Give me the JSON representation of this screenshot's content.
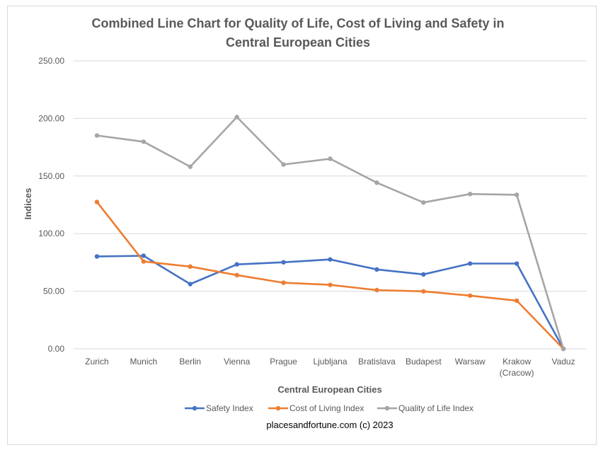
{
  "chart_data": {
    "type": "line",
    "title_lines": [
      "Combined Line Chart for Quality of Life, Cost of Living and Safety in",
      "Central European Cities"
    ],
    "xlabel": "Central European Cities",
    "ylabel": "Indices",
    "ylim": [
      0,
      250
    ],
    "yticks": [
      "0.00",
      "50.00",
      "100.00",
      "150.00",
      "200.00",
      "250.00"
    ],
    "ytick_values": [
      0,
      50,
      100,
      150,
      200,
      250
    ],
    "categories": [
      "Zurich",
      "Munich",
      "Berlin",
      "Vienna",
      "Prague",
      "Ljubljana",
      "Bratislava",
      "Budapest",
      "Warsaw",
      "Krakow (Cracow)",
      "Vaduz"
    ],
    "category_label_lines": [
      [
        "Zurich"
      ],
      [
        "Munich"
      ],
      [
        "Berlin"
      ],
      [
        "Vienna"
      ],
      [
        "Prague"
      ],
      [
        "Ljubljana"
      ],
      [
        "Bratislava"
      ],
      [
        "Budapest"
      ],
      [
        "Warsaw"
      ],
      [
        "Krakow",
        "(Cracow)"
      ],
      [
        "Vaduz"
      ]
    ],
    "grid": true,
    "legend_position": "bottom",
    "series": [
      {
        "name": "Safety Index",
        "color": "#4472c4",
        "values": [
          80.2,
          80.8,
          56.2,
          73.3,
          75.1,
          77.6,
          68.9,
          64.6,
          74.0,
          74.0,
          0
        ]
      },
      {
        "name": "Cost of Living Index",
        "color": "#ed7d31",
        "values": [
          127.5,
          75.8,
          71.4,
          64.0,
          57.4,
          55.5,
          51.0,
          49.9,
          46.2,
          41.8,
          0
        ]
      },
      {
        "name": "Quality of Life Index",
        "color": "#a5a5a5",
        "values": [
          185.2,
          179.8,
          158.1,
          201.2,
          160.0,
          165.0,
          144.2,
          127.0,
          134.4,
          133.7,
          0
        ]
      }
    ],
    "source_note": "placesandfortune.com (c) 2023"
  }
}
